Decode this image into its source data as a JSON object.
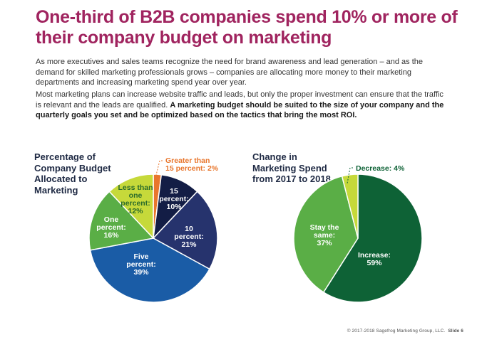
{
  "title": "One-third of B2B companies spend 10% or more of their company budget on marketing",
  "paragraph1": "As more executives and sales teams recognize the need for brand awareness and lead generation – and as the demand for skilled marketing professionals grows – companies are allocating more money to their marketing departments and increasing marketing spend year over year.",
  "paragraph2_regular": "Most marketing plans can increase website traffic and leads, but only the proper investment can ensure that the traffic is relevant and the leads are qualified.",
  "paragraph2_bold": "A marketing budget should be suited to the size of your company and the quarterly goals you set and be optimized based on the tactics that bring the most ROI.",
  "footer": {
    "copyright": "© 2017-2018 Sagefrog Marketing Group, LLC.",
    "slide": "Slide 6"
  },
  "chart_data": [
    {
      "type": "pie",
      "title": "Percentage of Company Budget Allocated to Marketing",
      "slices": [
        {
          "label": "Greater than 15 percent: 2%",
          "value": 2,
          "color": "#e8762d"
        },
        {
          "label": "15 percent: 10%",
          "value": 10,
          "color": "#131d45"
        },
        {
          "label": "10 percent: 21%",
          "value": 21,
          "color": "#26336d"
        },
        {
          "label": "Five percent: 39%",
          "value": 39,
          "color": "#1a5ca6"
        },
        {
          "label": "One percent: 16%",
          "value": 16,
          "color": "#5aae46"
        },
        {
          "label": "Less than one percent: 12%",
          "value": 12,
          "color": "#c6d93a"
        }
      ]
    },
    {
      "type": "pie",
      "title": "Change in Marketing Spend from 2017 to 2018",
      "slices": [
        {
          "label": "Increase: 59%",
          "value": 59,
          "color": "#0e6236"
        },
        {
          "label": "Stay the same: 37%",
          "value": 37,
          "color": "#5aae46"
        },
        {
          "label": "Decrease: 4%",
          "value": 4,
          "color": "#c6d93a"
        }
      ]
    }
  ]
}
